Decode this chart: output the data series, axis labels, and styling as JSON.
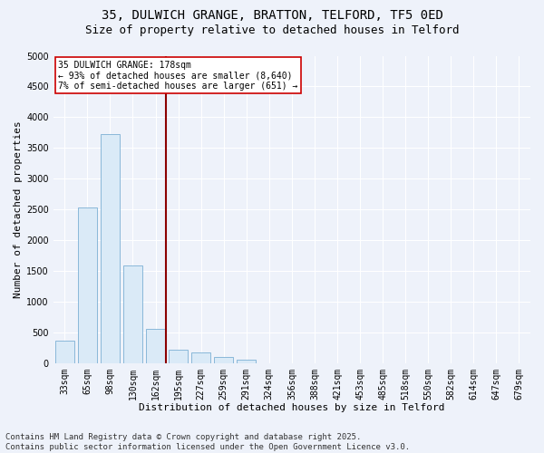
{
  "title_line1": "35, DULWICH GRANGE, BRATTON, TELFORD, TF5 0ED",
  "title_line2": "Size of property relative to detached houses in Telford",
  "xlabel": "Distribution of detached houses by size in Telford",
  "ylabel": "Number of detached properties",
  "categories": [
    "33sqm",
    "65sqm",
    "98sqm",
    "130sqm",
    "162sqm",
    "195sqm",
    "227sqm",
    "259sqm",
    "291sqm",
    "324sqm",
    "356sqm",
    "388sqm",
    "421sqm",
    "453sqm",
    "485sqm",
    "518sqm",
    "550sqm",
    "582sqm",
    "614sqm",
    "647sqm",
    "679sqm"
  ],
  "values": [
    370,
    2530,
    3720,
    1590,
    560,
    215,
    175,
    100,
    55,
    0,
    0,
    0,
    0,
    0,
    0,
    0,
    0,
    0,
    0,
    0,
    0
  ],
  "bar_color": "#daeaf7",
  "bar_edge_color": "#7bafd4",
  "vline_x": 4.45,
  "vline_color": "#8b0000",
  "annotation_text": "35 DULWICH GRANGE: 178sqm\n← 93% of detached houses are smaller (8,640)\n7% of semi-detached houses are larger (651) →",
  "annotation_box_color": "#ffffff",
  "annotation_box_edge": "#cc0000",
  "ylim": [
    0,
    5000
  ],
  "yticks": [
    0,
    500,
    1000,
    1500,
    2000,
    2500,
    3000,
    3500,
    4000,
    4500,
    5000
  ],
  "bg_color": "#eef2fa",
  "grid_color": "#ffffff",
  "footer": "Contains HM Land Registry data © Crown copyright and database right 2025.\nContains public sector information licensed under the Open Government Licence v3.0.",
  "title_fontsize": 10,
  "subtitle_fontsize": 9,
  "tick_fontsize": 7,
  "xlabel_fontsize": 8,
  "ylabel_fontsize": 8,
  "footer_fontsize": 6.5,
  "ann_fontsize": 7
}
